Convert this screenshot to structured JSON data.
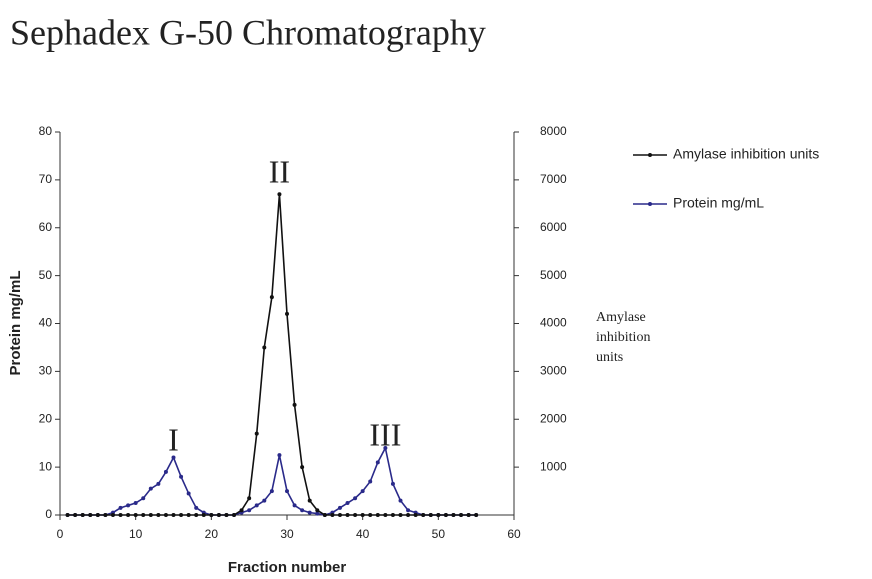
{
  "chart_data": {
    "type": "line",
    "title": "Sephadex G-50 Chromatography",
    "xlabel": "Fraction number",
    "ylabel": "Protein mg/mL",
    "y2label": "Amylase inhibition units",
    "x": [
      1,
      2,
      3,
      4,
      5,
      6,
      7,
      8,
      9,
      10,
      11,
      12,
      13,
      14,
      15,
      16,
      17,
      18,
      19,
      20,
      21,
      22,
      23,
      24,
      25,
      26,
      27,
      28,
      29,
      30,
      31,
      32,
      33,
      34,
      35,
      36,
      37,
      38,
      39,
      40,
      41,
      42,
      43,
      44,
      45,
      46,
      47,
      48,
      49,
      50,
      51,
      52,
      53,
      54,
      55
    ],
    "xlim": [
      0,
      60
    ],
    "xticks": [
      0,
      10,
      20,
      30,
      40,
      50,
      60
    ],
    "ylim": [
      0,
      80
    ],
    "yticks": [
      0,
      10,
      20,
      30,
      40,
      50,
      60,
      70,
      80
    ],
    "y2lim": [
      0,
      8000
    ],
    "y2ticks": [
      1000,
      2000,
      3000,
      4000,
      5000,
      6000,
      7000,
      8000
    ],
    "series": [
      {
        "name": "Amylase inhibition units",
        "color": "#111111",
        "axis": "y2",
        "values": [
          0,
          0,
          0,
          0,
          0,
          0,
          0,
          0,
          0,
          0,
          0,
          0,
          0,
          0,
          0,
          0,
          0,
          0,
          0,
          0,
          0,
          0,
          0,
          100,
          350,
          1700,
          3500,
          4550,
          6700,
          4200,
          2300,
          1000,
          300,
          100,
          0,
          0,
          0,
          0,
          0,
          0,
          0,
          0,
          0,
          0,
          0,
          0,
          0,
          0,
          0,
          0,
          0,
          0,
          0,
          0,
          0
        ]
      },
      {
        "name": "Protein mg/mL",
        "color": "#2a2a8a",
        "values": [
          0,
          0,
          0,
          0,
          0,
          0,
          0.5,
          1.5,
          2,
          2.5,
          3.5,
          5.5,
          6.5,
          9,
          12,
          8,
          4.5,
          1.5,
          0.5,
          0,
          0,
          0,
          0,
          0.5,
          1,
          2,
          3,
          5,
          12.5,
          5,
          2,
          1,
          0.5,
          0.3,
          0,
          0.5,
          1.5,
          2.5,
          3.5,
          5,
          7,
          11,
          14,
          6.5,
          3,
          1,
          0.5,
          0,
          0,
          0,
          0,
          0,
          0,
          0,
          0
        ]
      }
    ],
    "annotations": [
      {
        "text": "I",
        "x": 15,
        "y": 15
      },
      {
        "text": "II",
        "x": 29,
        "y": 71
      },
      {
        "text": "III",
        "x": 43,
        "y": 16
      }
    ]
  }
}
